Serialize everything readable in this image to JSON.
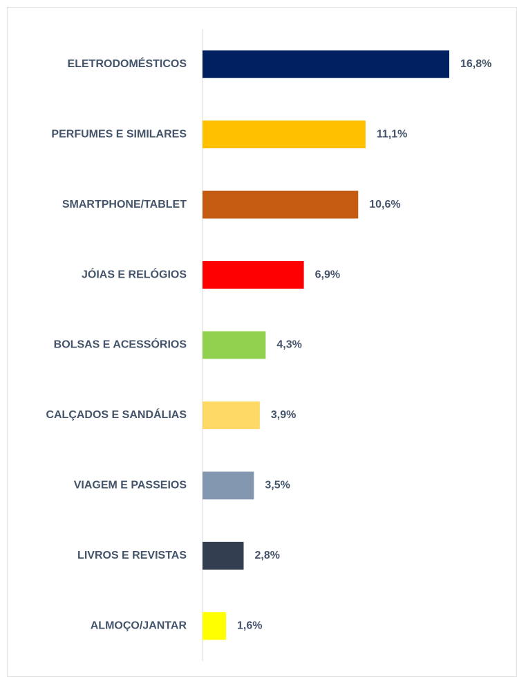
{
  "chart_data": {
    "type": "bar",
    "orientation": "horizontal",
    "categories": [
      "ELETRODOMÉSTICOS",
      "PERFUMES E SIMILARES",
      "SMARTPHONE/TABLET",
      "JÓIAS E RELÓGIOS",
      "BOLSAS E ACESSÓRIOS",
      "CALÇADOS E SANDÁLIAS",
      "VIAGEM E PASSEIOS",
      "LIVROS E REVISTAS",
      "ALMOÇO/JANTAR"
    ],
    "values": [
      16.8,
      11.1,
      10.6,
      6.9,
      4.3,
      3.9,
      3.5,
      2.8,
      1.6
    ],
    "value_labels": [
      "16,8%",
      "11,1%",
      "10,6%",
      "6,9%",
      "4,3%",
      "3,9%",
      "3,5%",
      "2,8%",
      "1,6%"
    ],
    "colors": [
      "#002060",
      "#ffc000",
      "#c55a11",
      "#ff0000",
      "#92d050",
      "#ffd966",
      "#8497b0",
      "#333f50",
      "#ffff00"
    ]
  }
}
